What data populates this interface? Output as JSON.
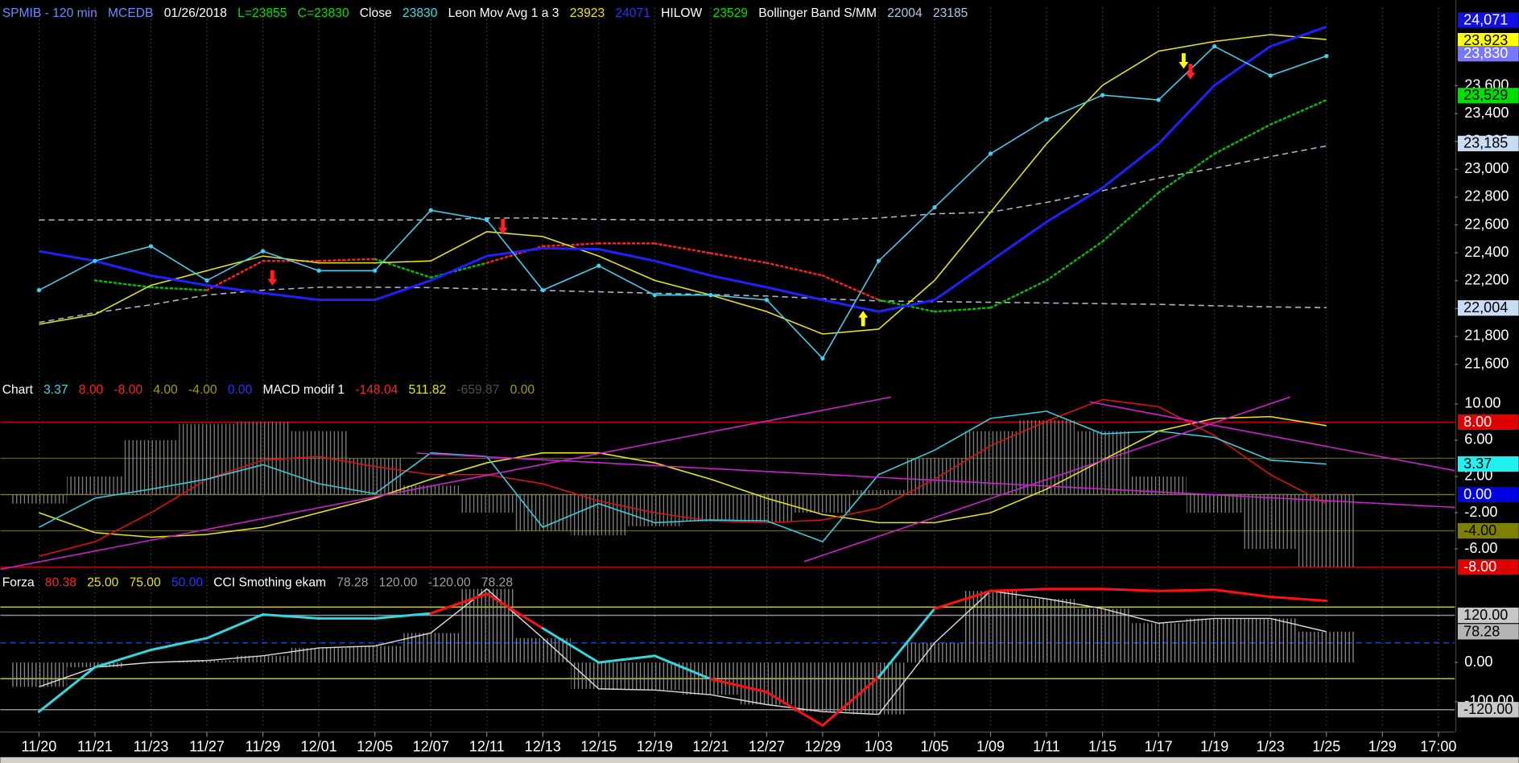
{
  "chart_data": [
    {
      "type": "line",
      "header": [
        {
          "text": "SPMIB - 120 min",
          "color": "#6b8cff"
        },
        {
          "text": "MCEDB",
          "color": "#6b8cff"
        },
        {
          "text": "01/26/2018",
          "color": "#ffffff"
        },
        {
          "text": "L=23855",
          "color": "#00e000"
        },
        {
          "text": "C=23830",
          "color": "#00e000"
        },
        {
          "text": "Close",
          "color": "#ffffff"
        },
        {
          "text": "23830",
          "color": "#40d8e8"
        },
        {
          "text": "Leon Mov Avg 1 a 3",
          "color": "#ffffff"
        },
        {
          "text": "23923",
          "color": "#e8e800"
        },
        {
          "text": "24071",
          "color": "#3030ff"
        },
        {
          "text": "HILOW",
          "color": "#ffffff"
        },
        {
          "text": "23529",
          "color": "#00e000"
        },
        {
          "text": "Bollinger Band S/MM",
          "color": "#ffffff"
        },
        {
          "text": "22004",
          "color": "#b0c8e8"
        },
        {
          "text": "23185",
          "color": "#b0c8e8"
        }
      ],
      "categories": [
        "11/20",
        "11/21",
        "11/23",
        "11/27",
        "11/29",
        "12/01",
        "12/05",
        "12/07",
        "12/11",
        "12/13",
        "12/15",
        "12/19",
        "12/21",
        "12/27",
        "12/29",
        "1/03",
        "1/05",
        "1/09",
        "1/11",
        "1/15",
        "1/17",
        "1/19",
        "1/23",
        "1/25",
        "1/29",
        "17:00"
      ],
      "ylim": [
        21490,
        24160
      ],
      "yticks": [
        {
          "value": 21600,
          "label": "21,600"
        },
        {
          "value": 21800,
          "label": "21,800"
        },
        {
          "value": 22000,
          "label": "22,000"
        },
        {
          "value": 22200,
          "label": "22,200"
        },
        {
          "value": 22400,
          "label": "22,400"
        },
        {
          "value": 22600,
          "label": "22,600"
        },
        {
          "value": 22800,
          "label": "22,800"
        },
        {
          "value": 23000,
          "label": "23,000"
        },
        {
          "value": 23200,
          "label": "23,200"
        },
        {
          "value": 23400,
          "label": "23,400"
        },
        {
          "value": 23600,
          "label": "23,600"
        }
      ],
      "markers": [
        {
          "value": 24071,
          "label": "24,071",
          "bg": "#1010e0",
          "fg": "#ffffff"
        },
        {
          "value": 23923,
          "label": "23,923",
          "bg": "#ffff00",
          "fg": "#000000"
        },
        {
          "value": 23830,
          "label": "23,830",
          "bg": "#7878ff",
          "fg": "#ffffff"
        },
        {
          "value": 23529,
          "label": "23,529",
          "bg": "#00e000",
          "fg": "#000000"
        },
        {
          "value": 23185,
          "label": "23,185",
          "bg": "#c8dcf4",
          "fg": "#000000"
        },
        {
          "value": 22004,
          "label": "22,004",
          "bg": "#c8dcf4",
          "fg": "#000000"
        }
      ],
      "series": [
        {
          "color": "#a8b8cc",
          "dash": "dashed",
          "values": [
            22636,
            22636,
            22636,
            22636,
            22636,
            22636,
            22636,
            22636,
            22650,
            22650,
            22640,
            22636,
            22636,
            22636,
            22636,
            22650,
            22680,
            22692,
            22762,
            22846,
            22937,
            23007,
            23091,
            23168,
            null,
            null
          ]
        },
        {
          "color": "#a8b8cc",
          "dash": "dashed",
          "values": [
            21900,
            21970,
            22027,
            22097,
            22132,
            22153,
            22153,
            22150,
            22140,
            22130,
            22120,
            22110,
            22100,
            22090,
            22070,
            22055,
            22050,
            22045,
            22040,
            22035,
            22030,
            22020,
            22012,
            22006,
            null,
            null
          ]
        },
        {
          "color": "#00c000",
          "dash": "dotted",
          "width": 2,
          "values": [
            null,
            22202,
            22153,
            22132,
            22342,
            22342,
            22356,
            22223,
            22328,
            22447,
            22468,
            22468,
            22398,
            22328,
            22237,
            22062,
            21978,
            22006,
            22202,
            22482,
            22832,
            23112,
            23322,
            23498,
            null,
            null
          ],
          "segment_colors": [
            "#00c000",
            "#00c000",
            "#ff2020",
            "#ff2020",
            "#ff2020",
            "#00c000",
            "#00c000",
            "#ff2020",
            "#ff2020",
            "#ff2020",
            "#ff2020",
            "#ff2020",
            "#ff2020",
            "#ff2020",
            "#00c000",
            "#00c000",
            "#00c000",
            "#00c000",
            "#00c000",
            "#00c000",
            "#00c000",
            "#00c000"
          ]
        },
        {
          "color": "#e8e800",
          "values": [
            21887,
            21957,
            22167,
            22272,
            22377,
            22328,
            22328,
            22342,
            22552,
            22517,
            22377,
            22202,
            22097,
            21978,
            21817,
            21852,
            22202,
            22692,
            23183,
            23603,
            23848,
            23918,
            23967,
            23932,
            null,
            null
          ]
        },
        {
          "color": "#2020ff",
          "width": 2.5,
          "values": [
            22412,
            22342,
            22237,
            22167,
            22111,
            22062,
            22062,
            22202,
            22377,
            22433,
            22426,
            22342,
            22237,
            22153,
            22062,
            21978,
            22062,
            22342,
            22622,
            22867,
            23183,
            23603,
            23883,
            24023,
            null,
            null
          ]
        },
        {
          "color": "#40d0f0",
          "dots": true,
          "values": [
            22132,
            22342,
            22447,
            22202,
            22412,
            22272,
            22272,
            22706,
            22636,
            22132,
            22307,
            22097,
            22097,
            22062,
            21642,
            22342,
            22727,
            23112,
            23358,
            23533,
            23498,
            23883,
            23673,
            23813,
            null,
            null
          ]
        }
      ]
    },
    {
      "type": "line",
      "header": [
        {
          "text": "Chart",
          "color": "#ffffff"
        },
        {
          "text": "3.37",
          "color": "#40d8e8"
        },
        {
          "text": "8.00",
          "color": "#ff2020"
        },
        {
          "text": "-8.00",
          "color": "#ff2020"
        },
        {
          "text": "4.00",
          "color": "#a0a000"
        },
        {
          "text": "-4.00",
          "color": "#a0a000"
        },
        {
          "text": "0.00",
          "color": "#3030ff"
        },
        {
          "text": "MACD modif 1",
          "color": "#ffffff"
        },
        {
          "text": "-148.04",
          "color": "#ff2020"
        },
        {
          "text": "511.82",
          "color": "#e8e800"
        },
        {
          "text": "-659.87",
          "color": "#505050"
        },
        {
          "text": "0.00",
          "color": "#a0a000"
        }
      ],
      "ylim": [
        -9,
        11.3
      ],
      "yticks": [
        {
          "value": 10,
          "label": "10.00"
        },
        {
          "value": 6,
          "label": "6.00"
        },
        {
          "value": 2,
          "label": "2.00"
        },
        {
          "value": -2,
          "label": "-2.00"
        },
        {
          "value": -6,
          "label": "-6.00"
        }
      ],
      "markers": [
        {
          "value": 8,
          "label": "8.00",
          "bg": "#e00000",
          "fg": "#ffffff"
        },
        {
          "value": 3.37,
          "label": "3.37",
          "bg": "#20f0f0",
          "fg": "#000000"
        },
        {
          "value": 0,
          "label": "0.00",
          "bg": "#0000e0",
          "fg": "#ffffff"
        },
        {
          "value": -4,
          "label": "-4.00",
          "bg": "#808000",
          "fg": "#000000"
        },
        {
          "value": -8,
          "label": "-8.00",
          "bg": "#e00000",
          "fg": "#ffffff"
        }
      ],
      "levels": [
        {
          "value": 8,
          "color": "#c00000"
        },
        {
          "value": 4,
          "color": "#606000"
        },
        {
          "value": 0,
          "color": "#707050"
        },
        {
          "value": -4,
          "color": "#606000"
        },
        {
          "value": -8,
          "color": "#c00000"
        }
      ],
      "series": [
        {
          "type": "bar",
          "color": "#8c8c8c",
          "values": [
            -1,
            2,
            6,
            7.8,
            8,
            7,
            4,
            1,
            -2,
            -4,
            -4.5,
            -3.5,
            -3,
            -3,
            -2,
            0.5,
            4,
            7,
            8.2,
            7,
            2,
            -2,
            -6,
            -8,
            null,
            null
          ]
        },
        {
          "color": "#e8e800",
          "values": [
            -2.0,
            -4.2,
            -4.7,
            -4.4,
            -3.6,
            -2.0,
            -0.4,
            1.7,
            3.5,
            4.6,
            4.6,
            3.5,
            1.7,
            -0.4,
            -2.2,
            -3.1,
            -3.1,
            -2.0,
            0.6,
            3.8,
            7.0,
            8.4,
            8.6,
            7.6,
            null,
            null
          ]
        },
        {
          "color": "#e01010",
          "values": [
            -6.8,
            -5.2,
            -2.0,
            1.7,
            3.8,
            4.2,
            3.1,
            2.2,
            2.2,
            1.2,
            -0.7,
            -2.0,
            -2.9,
            -3.1,
            -2.8,
            -1.5,
            1.7,
            5.4,
            8.1,
            10.5,
            9.7,
            6.5,
            2.2,
            -1.0,
            null,
            null
          ]
        },
        {
          "color": "#30d0e0",
          "values": [
            -3.6,
            -0.4,
            0.6,
            1.7,
            3.3,
            1.2,
            0.1,
            4.6,
            4.2,
            -3.6,
            -1.0,
            -3.1,
            -2.8,
            -2.9,
            -5.2,
            2.2,
            4.9,
            8.4,
            9.2,
            6.7,
            7.0,
            6.3,
            3.8,
            3.37,
            null,
            null
          ]
        }
      ]
    },
    {
      "type": "line",
      "header": [
        {
          "text": "Forza",
          "color": "#ffffff"
        },
        {
          "text": "80.38",
          "color": "#ff2020"
        },
        {
          "text": "25.00",
          "color": "#e8e800"
        },
        {
          "text": "75.00",
          "color": "#e8e800"
        },
        {
          "text": "50.00",
          "color": "#3030ff"
        },
        {
          "text": "CCI Smothing ekam",
          "color": "#ffffff"
        },
        {
          "text": "78.28",
          "color": "#a0a0a0"
        },
        {
          "text": "120.00",
          "color": "#a0a0a0"
        },
        {
          "text": "-120.00",
          "color": "#a0a0a0"
        },
        {
          "text": "78.28",
          "color": "#a0a0a0"
        }
      ],
      "ylim": [
        -167,
        200
      ],
      "y2lim": [
        -9.5,
        91.2
      ],
      "yticks": [
        {
          "value": 0,
          "label": "0.00"
        },
        {
          "value": -100,
          "label": "-100.00"
        }
      ],
      "markers": [
        {
          "value": 120,
          "label": "120.00",
          "bg": "#c8c8c8",
          "fg": "#000000"
        },
        {
          "value": 78.28,
          "label": "78.28",
          "bg": "#b4b4b4",
          "fg": "#000000"
        },
        {
          "value": -120,
          "label": "-120.00",
          "bg": "#c8c8c8",
          "fg": "#000000"
        }
      ],
      "levels": [
        {
          "value": 120,
          "color": "#909090"
        },
        {
          "value": -120,
          "color": "#909090"
        },
        {
          "value": 75,
          "color": "#c8c800",
          "axis": "y2"
        },
        {
          "value": 25,
          "color": "#c8c800",
          "axis": "y2"
        },
        {
          "value": 50,
          "color": "#2040c0",
          "axis": "y2",
          "dash": "dashed"
        }
      ],
      "series": [
        {
          "type": "bar",
          "color": "#9a9a9a",
          "outline": "#d8d8d8",
          "values": [
            -62,
            -12,
            0,
            5,
            17,
            37,
            42,
            75,
            187,
            62,
            -67,
            -70,
            -82,
            -107,
            -125,
            -132,
            50,
            182,
            162,
            137,
            100,
            112,
            112,
            78.28,
            null,
            null
          ]
        },
        {
          "color": "#30d8e0",
          "width": 2.5,
          "values": [
            -125,
            -12,
            32,
            62,
            122,
            112,
            112,
            125,
            175,
            87,
            0,
            17,
            -42,
            -75,
            -160,
            -37,
            137,
            182,
            187,
            187,
            182,
            185,
            167,
            157,
            null,
            null
          ],
          "segment_colors": [
            "#30d8e0",
            "#30d8e0",
            "#30d8e0",
            "#30d8e0",
            "#30d8e0",
            "#30d8e0",
            "#30d8e0",
            "#ff1010",
            "#ff1010",
            "#30d8e0",
            "#30d8e0",
            "#30d8e0",
            "#ff1010",
            "#ff1010",
            "#ff1010",
            "#30d8e0",
            "#ff1010",
            "#ff1010",
            "#ff1010",
            "#ff1010",
            "#ff1010",
            "#ff1010",
            "#ff1010"
          ]
        }
      ]
    }
  ]
}
